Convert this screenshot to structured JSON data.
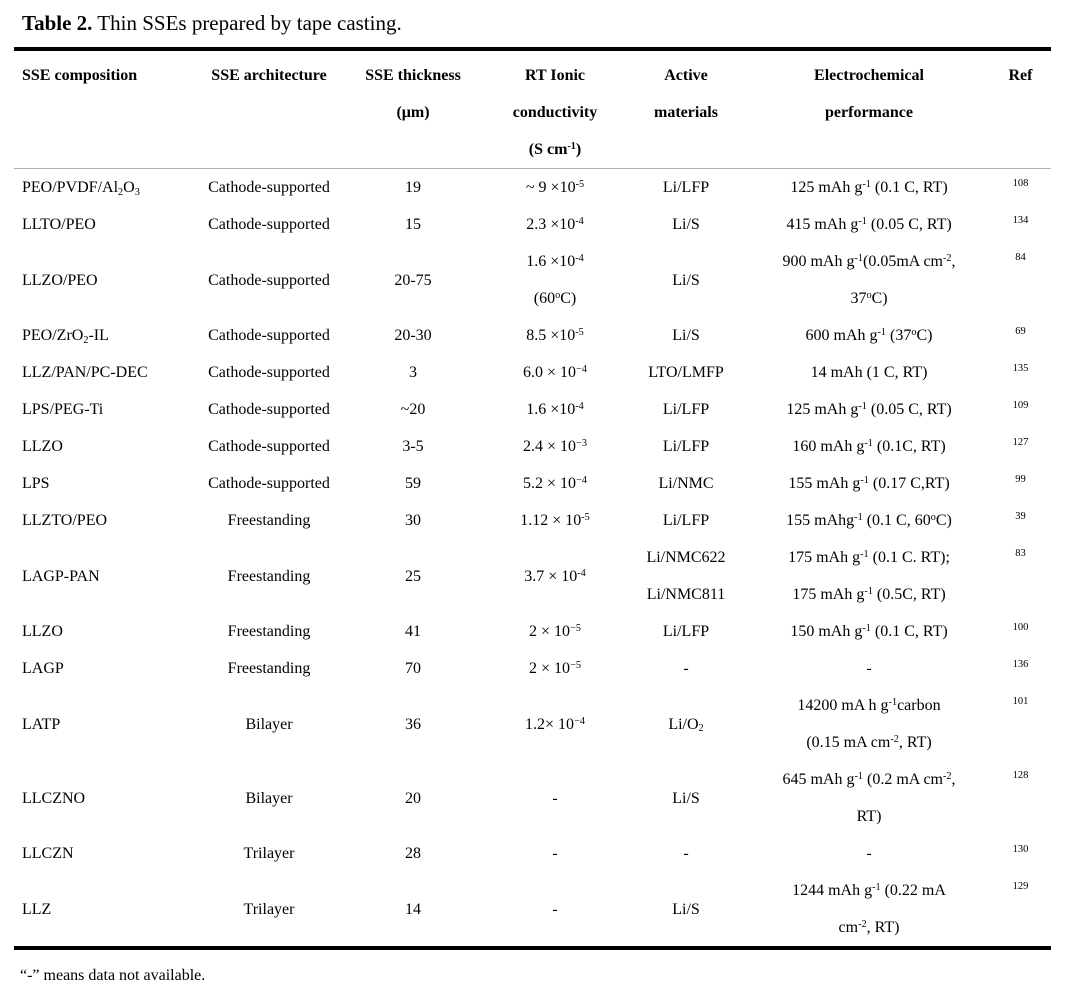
{
  "caption": {
    "label": "Table 2.",
    "text": "Thin SSEs prepared by tape casting."
  },
  "footnote": "“-” means data not available.",
  "table": {
    "columns": [
      {
        "key": "composition",
        "header": [
          "SSE composition"
        ],
        "align": "left"
      },
      {
        "key": "architecture",
        "header": [
          "SSE architecture"
        ],
        "align": "center"
      },
      {
        "key": "thickness",
        "header": [
          "SSE thickness",
          "(μm)"
        ],
        "align": "center"
      },
      {
        "key": "conductivity",
        "header": [
          "RT Ionic",
          "conductivity",
          "(S cm^{-1})"
        ],
        "align": "center"
      },
      {
        "key": "active",
        "header": [
          "Active",
          "materials"
        ],
        "align": "center"
      },
      {
        "key": "performance",
        "header": [
          "Electrochemical",
          "performance"
        ],
        "align": "center"
      },
      {
        "key": "ref",
        "header": [
          "Ref"
        ],
        "align": "center"
      }
    ],
    "rows": [
      {
        "composition": "PEO/PVDF/Al_{2}O_{3}",
        "architecture": "Cathode-supported",
        "thickness": "19",
        "conductivity": "~ 9 ×10^{-5}",
        "active": "Li/LFP",
        "performance": "125 mAh g^{-1} (0.1 C, RT)",
        "ref": "108"
      },
      {
        "composition": "LLTO/PEO",
        "architecture": "Cathode-supported",
        "thickness": "15",
        "conductivity": "2.3 ×10^{-4}",
        "active": "Li/S",
        "performance": "415 mAh g^{-1} (0.05 C, RT)",
        "ref": "134"
      },
      {
        "composition": "LLZO/PEO",
        "architecture": "Cathode-supported",
        "thickness": "20-75",
        "conductivity": [
          "1.6 ×10^{-4}",
          "(60^{o}C)"
        ],
        "active": "Li/S",
        "performance": [
          "900 mAh g^{-1}(0.05mA cm^{-2},",
          "37^{o}C)"
        ],
        "ref": "84"
      },
      {
        "composition": "PEO/ZrO_{2}-IL",
        "architecture": "Cathode-supported",
        "thickness": "20-30",
        "conductivity": "8.5 ×10^{-5}",
        "active": "Li/S",
        "performance": "600 mAh g^{-1} (37^{o}C)",
        "ref": "69"
      },
      {
        "composition": "LLZ/PAN/PC-DEC",
        "architecture": "Cathode-supported",
        "thickness": "3",
        "conductivity": "6.0 × 10^{−4}",
        "active": "LTO/LMFP",
        "performance": "14 mAh (1 C, RT)",
        "ref": "135"
      },
      {
        "composition": "LPS/PEG-Ti",
        "architecture": "Cathode-supported",
        "thickness": "~20",
        "conductivity": "1.6 ×10^{-4}",
        "active": "Li/LFP",
        "performance": "125 mAh g^{-1} (0.05 C, RT)",
        "ref": "109"
      },
      {
        "composition": "LLZO",
        "architecture": "Cathode-supported",
        "thickness": "3-5",
        "conductivity": "2.4 × 10^{−3}",
        "active": "Li/LFP",
        "performance": "160 mAh g^{-1} (0.1C, RT)",
        "ref": "127"
      },
      {
        "composition": "LPS",
        "architecture": "Cathode-supported",
        "thickness": "59",
        "conductivity": "5.2 × 10^{−4}",
        "active": "Li/NMC",
        "performance": "155 mAh g^{-1} (0.17 C,RT)",
        "ref": "99"
      },
      {
        "composition": "LLZTO/PEO",
        "architecture": "Freestanding",
        "thickness": "30",
        "conductivity": "1.12 × 10^{-5}",
        "active": "Li/LFP",
        "performance": "155 mAhg^{-1} (0.1 C, 60^{o}C)",
        "ref": "39"
      },
      {
        "composition": "LAGP-PAN",
        "architecture": "Freestanding",
        "thickness": "25",
        "conductivity": "3.7 × 10^{-4}",
        "active": [
          "Li/NMC622",
          "Li/NMC811"
        ],
        "performance": [
          "175 mAh g^{-1} (0.1 C. RT);",
          "175 mAh g^{-1} (0.5C, RT)"
        ],
        "ref": "83"
      },
      {
        "composition": "LLZO",
        "architecture": "Freestanding",
        "thickness": "41",
        "conductivity": "2 × 10^{−5}",
        "active": "Li/LFP",
        "performance": "150 mAh g^{-1} (0.1 C, RT)",
        "ref": "100"
      },
      {
        "composition": "LAGP",
        "architecture": "Freestanding",
        "thickness": "70",
        "conductivity": "2 × 10^{−5}",
        "active": "-",
        "performance": "-",
        "ref": "136"
      },
      {
        "composition": "LATP",
        "architecture": "Bilayer",
        "thickness": "36",
        "conductivity": "1.2× 10^{−4}",
        "active": "Li/O_{2}",
        "performance": [
          "14200 mA h g^{-1}carbon",
          "(0.15 mA cm^{-2}, RT)"
        ],
        "ref": "101"
      },
      {
        "composition": "LLCZNO",
        "architecture": "Bilayer",
        "thickness": "20",
        "conductivity": "-",
        "active": "Li/S",
        "performance": [
          "645 mAh g^{-1} (0.2 mA cm^{-2},",
          "RT)"
        ],
        "ref": "128"
      },
      {
        "composition": "LLCZN",
        "architecture": "Trilayer",
        "thickness": "28",
        "conductivity": "-",
        "active": "-",
        "performance": "-",
        "ref": "130"
      },
      {
        "composition": "LLZ",
        "architecture": "Trilayer",
        "thickness": "14",
        "conductivity": "-",
        "active": "Li/S",
        "performance": [
          "1244 mAh g^{-1} (0.22 mA",
          "cm^{-2}, RT)"
        ],
        "ref": "129"
      }
    ]
  }
}
